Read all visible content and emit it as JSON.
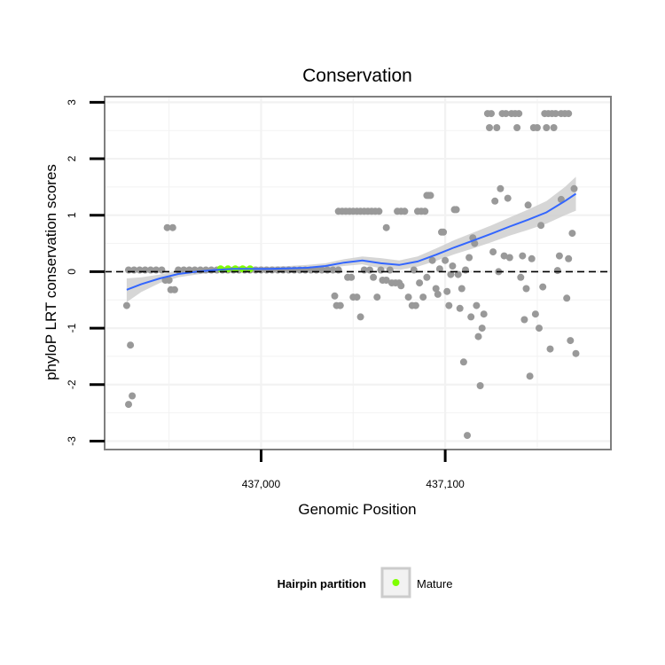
{
  "chart_data": {
    "type": "scatter",
    "title": "Conservation",
    "xlabel": "Genomic Position",
    "ylabel": "phyloP LRT conservation scores",
    "xlim": [
      436915,
      437190
    ],
    "ylim": [
      -3.15,
      3.1
    ],
    "x_ticks": [
      437000,
      437100
    ],
    "x_tick_labels": [
      "437,000",
      "437,100"
    ],
    "x_minor_grid": [
      436950,
      437050,
      437150
    ],
    "y_ticks": [
      -3,
      -2,
      -1,
      0,
      1,
      2,
      3
    ],
    "y_tick_labels": [
      "-3",
      "-2",
      "-1",
      "0",
      "1",
      "2",
      "3"
    ],
    "reference_line": {
      "y": 0,
      "style": "dashed",
      "color": "#000000"
    },
    "colors": {
      "points": "#999999",
      "mature": "#7fff00",
      "smooth": "#3366ff",
      "ribbon": "#cccccc",
      "border": "#7f7f7f",
      "grid": "#f2f2f2"
    },
    "series": [
      {
        "name": "phyloP scores",
        "points": [
          [
            436927,
            -0.6
          ],
          [
            436928,
            -2.35
          ],
          [
            436929,
            -1.3
          ],
          [
            436930,
            -2.2
          ],
          [
            436928,
            0.03
          ],
          [
            436931,
            0.03
          ],
          [
            436934,
            0.03
          ],
          [
            436937,
            0.03
          ],
          [
            436940,
            0.03
          ],
          [
            436943,
            0.03
          ],
          [
            436946,
            0.03
          ],
          [
            436948,
            -0.15
          ],
          [
            436950,
            -0.15
          ],
          [
            436951,
            -0.32
          ],
          [
            436953,
            -0.32
          ],
          [
            436949,
            0.78
          ],
          [
            436952,
            0.78
          ],
          [
            436955,
            0.03
          ],
          [
            436958,
            0.03
          ],
          [
            436961,
            0.03
          ],
          [
            436964,
            0.03
          ],
          [
            436967,
            0.03
          ],
          [
            436970,
            0.03
          ],
          [
            436973,
            0.03
          ],
          [
            436976,
            0.03
          ],
          [
            436979,
            0.03
          ],
          [
            436982,
            0.03
          ],
          [
            436985,
            0.03
          ],
          [
            436988,
            0.03
          ],
          [
            436991,
            0.03
          ],
          [
            436994,
            0.03
          ],
          [
            436997,
            0.03
          ],
          [
            437000,
            0.03
          ],
          [
            437003,
            0.03
          ],
          [
            437006,
            0.03
          ],
          [
            437009,
            0.03
          ],
          [
            437012,
            0.03
          ],
          [
            437015,
            0.03
          ],
          [
            437018,
            0.03
          ],
          [
            437021,
            0.03
          ],
          [
            437024,
            0.03
          ],
          [
            437027,
            0.03
          ],
          [
            437030,
            0.03
          ],
          [
            437033,
            0.03
          ],
          [
            437036,
            0.03
          ],
          [
            437039,
            0.03
          ],
          [
            437042,
            0.03
          ],
          [
            437040,
            -0.43
          ],
          [
            437041,
            -0.6
          ],
          [
            437043,
            -0.6
          ],
          [
            437042,
            1.07
          ],
          [
            437044,
            1.07
          ],
          [
            437046,
            1.07
          ],
          [
            437048,
            1.07
          ],
          [
            437050,
            1.07
          ],
          [
            437052,
            1.07
          ],
          [
            437054,
            1.07
          ],
          [
            437056,
            1.07
          ],
          [
            437058,
            1.07
          ],
          [
            437060,
            1.07
          ],
          [
            437062,
            1.07
          ],
          [
            437064,
            1.07
          ],
          [
            437047,
            -0.1
          ],
          [
            437049,
            -0.1
          ],
          [
            437050,
            -0.45
          ],
          [
            437052,
            -0.45
          ],
          [
            437054,
            -0.8
          ],
          [
            437056,
            0.03
          ],
          [
            437059,
            0.03
          ],
          [
            437061,
            -0.1
          ],
          [
            437063,
            -0.45
          ],
          [
            437065,
            0.03
          ],
          [
            437066,
            -0.15
          ],
          [
            437068,
            0.78
          ],
          [
            437068,
            -0.15
          ],
          [
            437070,
            0.03
          ],
          [
            437071,
            -0.2
          ],
          [
            437073,
            -0.2
          ],
          [
            437075,
            -0.2
          ],
          [
            437076,
            -0.25
          ],
          [
            437074,
            1.07
          ],
          [
            437076,
            1.07
          ],
          [
            437078,
            1.07
          ],
          [
            437080,
            -0.45
          ],
          [
            437082,
            -0.6
          ],
          [
            437083,
            0.03
          ],
          [
            437084,
            -0.6
          ],
          [
            437085,
            1.07
          ],
          [
            437087,
            1.07
          ],
          [
            437089,
            1.07
          ],
          [
            437086,
            -0.2
          ],
          [
            437088,
            -0.45
          ],
          [
            437090,
            -0.1
          ],
          [
            437090,
            1.35
          ],
          [
            437091,
            1.35
          ],
          [
            437092,
            1.35
          ],
          [
            437093,
            0.2
          ],
          [
            437095,
            -0.3
          ],
          [
            437096,
            -0.4
          ],
          [
            437097,
            0.05
          ],
          [
            437098,
            0.7
          ],
          [
            437099,
            0.7
          ],
          [
            437100,
            0.2
          ],
          [
            437101,
            -0.35
          ],
          [
            437102,
            -0.6
          ],
          [
            437103,
            -0.05
          ],
          [
            437104,
            0.1
          ],
          [
            437105,
            1.1
          ],
          [
            437106,
            1.1
          ],
          [
            437107,
            -0.05
          ],
          [
            437108,
            -0.65
          ],
          [
            437109,
            -0.3
          ],
          [
            437110,
            -1.6
          ],
          [
            437111,
            0.03
          ],
          [
            437112,
            -2.9
          ],
          [
            437113,
            0.25
          ],
          [
            437114,
            -0.8
          ],
          [
            437115,
            0.6
          ],
          [
            437116,
            0.5
          ],
          [
            437117,
            -0.6
          ],
          [
            437118,
            -1.15
          ],
          [
            437119,
            -2.02
          ],
          [
            437120,
            -1.0
          ],
          [
            437121,
            -0.75
          ],
          [
            437123,
            2.8
          ],
          [
            437125,
            2.8
          ],
          [
            437124,
            2.55
          ],
          [
            437126,
            0.35
          ],
          [
            437127,
            1.25
          ],
          [
            437128,
            2.55
          ],
          [
            437129,
            0.0
          ],
          [
            437130,
            1.47
          ],
          [
            437131,
            2.8
          ],
          [
            437133,
            2.8
          ],
          [
            437132,
            0.28
          ],
          [
            437134,
            1.3
          ],
          [
            437135,
            0.25
          ],
          [
            437136,
            2.8
          ],
          [
            437138,
            2.8
          ],
          [
            437139,
            2.55
          ],
          [
            437140,
            2.8
          ],
          [
            437141,
            -0.1
          ],
          [
            437142,
            0.28
          ],
          [
            437143,
            -0.85
          ],
          [
            437144,
            -0.3
          ],
          [
            437145,
            1.18
          ],
          [
            437146,
            -1.85
          ],
          [
            437147,
            0.23
          ],
          [
            437148,
            2.55
          ],
          [
            437150,
            2.55
          ],
          [
            437149,
            -0.75
          ],
          [
            437151,
            -1.0
          ],
          [
            437152,
            0.82
          ],
          [
            437153,
            -0.27
          ],
          [
            437154,
            2.8
          ],
          [
            437156,
            2.8
          ],
          [
            437155,
            2.55
          ],
          [
            437157,
            -1.37
          ],
          [
            437158,
            2.8
          ],
          [
            437159,
            2.55
          ],
          [
            437160,
            2.8
          ],
          [
            437161,
            0.02
          ],
          [
            437162,
            0.28
          ],
          [
            437163,
            1.28
          ],
          [
            437163,
            2.8
          ],
          [
            437165,
            2.8
          ],
          [
            437166,
            -0.47
          ],
          [
            437167,
            0.23
          ],
          [
            437168,
            -1.22
          ],
          [
            437169,
            0.68
          ],
          [
            437170,
            1.47
          ],
          [
            437171,
            -1.45
          ],
          [
            437167,
            2.8
          ]
        ]
      },
      {
        "name": "Mature",
        "points": [
          [
            436978,
            0.05
          ],
          [
            436982,
            0.05
          ],
          [
            436986,
            0.05
          ],
          [
            436990,
            0.05
          ],
          [
            436994,
            0.05
          ]
        ]
      }
    ],
    "smooth": {
      "name": "loess fit",
      "x": [
        436927,
        436935,
        436945,
        436955,
        436965,
        436975,
        436985,
        436995,
        437005,
        437015,
        437025,
        437035,
        437045,
        437055,
        437065,
        437075,
        437085,
        437095,
        437105,
        437115,
        437125,
        437135,
        437145,
        437155,
        437165,
        437171
      ],
      "y": [
        -0.32,
        -0.22,
        -0.12,
        -0.04,
        0.0,
        0.03,
        0.05,
        0.05,
        0.05,
        0.06,
        0.07,
        0.1,
        0.16,
        0.2,
        0.15,
        0.12,
        0.18,
        0.3,
        0.43,
        0.55,
        0.67,
        0.8,
        0.92,
        1.05,
        1.25,
        1.38
      ],
      "upper": [
        -0.12,
        -0.1,
        -0.05,
        0.02,
        0.05,
        0.07,
        0.09,
        0.09,
        0.09,
        0.1,
        0.12,
        0.15,
        0.22,
        0.27,
        0.24,
        0.2,
        0.27,
        0.41,
        0.56,
        0.69,
        0.82,
        0.96,
        1.1,
        1.25,
        1.5,
        1.68
      ],
      "lower": [
        -0.54,
        -0.36,
        -0.2,
        -0.1,
        -0.05,
        -0.01,
        0.01,
        0.01,
        0.01,
        0.02,
        0.03,
        0.06,
        0.1,
        0.13,
        0.06,
        0.03,
        0.09,
        0.19,
        0.31,
        0.41,
        0.52,
        0.64,
        0.74,
        0.85,
        1.0,
        1.08
      ]
    },
    "legend": {
      "title": "Hairpin partition",
      "label": "Mature",
      "position": "bottom"
    }
  }
}
